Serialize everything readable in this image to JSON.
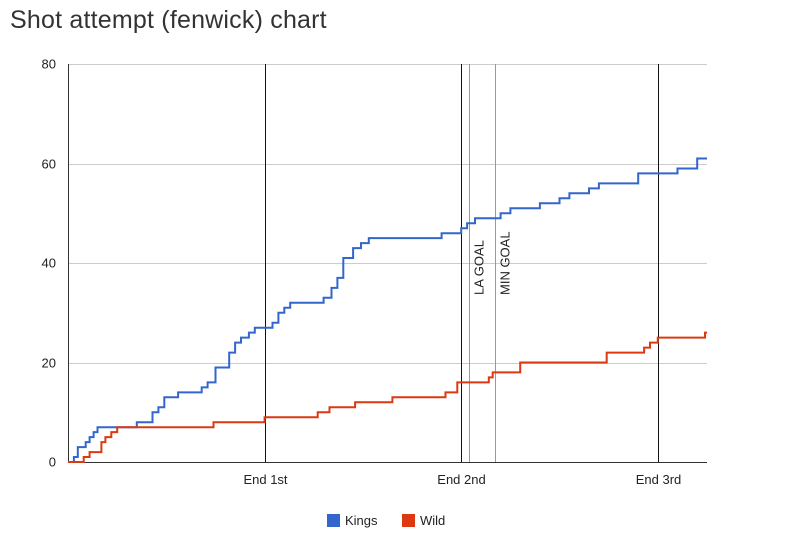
{
  "page": {
    "title": "Shot attempt (fenwick) chart"
  },
  "chart_data": {
    "type": "line",
    "title": "Shot attempt (fenwick) chart",
    "xlabel": "",
    "ylabel": "",
    "xlim": [
      0,
      3.25
    ],
    "ylim": [
      0,
      80
    ],
    "y_ticks": [
      0,
      20,
      40,
      60,
      80
    ],
    "x_ticks": [
      {
        "value": 1,
        "label": "End 1st"
      },
      {
        "value": 2,
        "label": "End 2nd"
      },
      {
        "value": 3,
        "label": "End 3rd"
      }
    ],
    "grid": true,
    "legend_position": "bottom",
    "annotations": [
      {
        "x": 2.04,
        "label": "LA GOAL"
      },
      {
        "x": 2.17,
        "label": "MIN GOAL"
      }
    ],
    "series": [
      {
        "name": "Kings",
        "color": "#3366cc",
        "points": [
          [
            0,
            0
          ],
          [
            0.03,
            1
          ],
          [
            0.05,
            3
          ],
          [
            0.09,
            4
          ],
          [
            0.11,
            5
          ],
          [
            0.13,
            6
          ],
          [
            0.15,
            7
          ],
          [
            0.35,
            8
          ],
          [
            0.43,
            10
          ],
          [
            0.46,
            11
          ],
          [
            0.49,
            13
          ],
          [
            0.56,
            14
          ],
          [
            0.68,
            15
          ],
          [
            0.71,
            16
          ],
          [
            0.75,
            19
          ],
          [
            0.82,
            22
          ],
          [
            0.85,
            24
          ],
          [
            0.88,
            25
          ],
          [
            0.92,
            26
          ],
          [
            0.95,
            27
          ],
          [
            1.04,
            28
          ],
          [
            1.07,
            30
          ],
          [
            1.1,
            31
          ],
          [
            1.13,
            32
          ],
          [
            1.3,
            33
          ],
          [
            1.34,
            35
          ],
          [
            1.37,
            37
          ],
          [
            1.4,
            41
          ],
          [
            1.45,
            43
          ],
          [
            1.49,
            44
          ],
          [
            1.53,
            45
          ],
          [
            1.9,
            46
          ],
          [
            2.0,
            47
          ],
          [
            2.03,
            48
          ],
          [
            2.07,
            49
          ],
          [
            2.2,
            50
          ],
          [
            2.25,
            51
          ],
          [
            2.4,
            52
          ],
          [
            2.5,
            53
          ],
          [
            2.55,
            54
          ],
          [
            2.65,
            55
          ],
          [
            2.7,
            56
          ],
          [
            2.9,
            58
          ],
          [
            3.1,
            59
          ],
          [
            3.2,
            61
          ],
          [
            3.25,
            61
          ]
        ]
      },
      {
        "name": "Wild",
        "color": "#dc3912",
        "points": [
          [
            0,
            0
          ],
          [
            0.08,
            1
          ],
          [
            0.11,
            2
          ],
          [
            0.17,
            4
          ],
          [
            0.19,
            5
          ],
          [
            0.22,
            6
          ],
          [
            0.25,
            7
          ],
          [
            0.74,
            8
          ],
          [
            1.0,
            9
          ],
          [
            1.27,
            10
          ],
          [
            1.33,
            11
          ],
          [
            1.46,
            12
          ],
          [
            1.65,
            13
          ],
          [
            1.92,
            14
          ],
          [
            1.98,
            16
          ],
          [
            2.14,
            17
          ],
          [
            2.16,
            18
          ],
          [
            2.3,
            20
          ],
          [
            2.74,
            22
          ],
          [
            2.93,
            23
          ],
          [
            2.96,
            24
          ],
          [
            3.0,
            25
          ],
          [
            3.24,
            26
          ],
          [
            3.25,
            26
          ]
        ]
      }
    ]
  }
}
